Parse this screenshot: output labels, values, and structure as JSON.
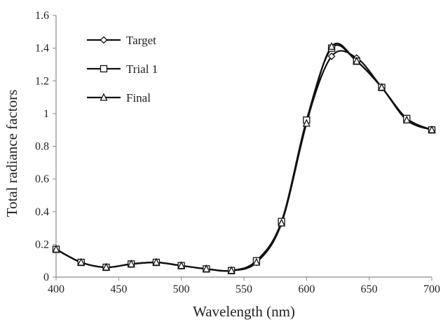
{
  "chart_data": {
    "type": "line",
    "title": "",
    "xlabel": "Wavelength (nm)",
    "ylabel": "Total  radiance factors",
    "xlim": [
      400,
      700
    ],
    "ylim": [
      0,
      1.6
    ],
    "x_ticks": [
      "400",
      "450",
      "500",
      "550",
      "600",
      "650",
      "700"
    ],
    "y_ticks": [
      "0",
      "0.2",
      "0.4",
      "0.6",
      "0.8",
      "1",
      "1.2",
      "1.4",
      "1.6"
    ],
    "grid": false,
    "legend_position": "top-left",
    "x": [
      400,
      420,
      440,
      460,
      480,
      500,
      520,
      540,
      560,
      580,
      600,
      620,
      640,
      660,
      680,
      700
    ],
    "series": [
      {
        "name": "Target",
        "marker": "diamond",
        "values": [
          0.17,
          0.09,
          0.06,
          0.08,
          0.09,
          0.07,
          0.05,
          0.04,
          0.09,
          0.33,
          0.95,
          1.35,
          1.34,
          1.16,
          0.97,
          0.9
        ]
      },
      {
        "name": "Trial 1",
        "marker": "square",
        "values": [
          0.17,
          0.09,
          0.06,
          0.08,
          0.09,
          0.07,
          0.05,
          0.04,
          0.1,
          0.34,
          0.96,
          1.4,
          1.32,
          1.16,
          0.97,
          0.9
        ]
      },
      {
        "name": "Final",
        "marker": "triangle",
        "values": [
          0.17,
          0.09,
          0.06,
          0.08,
          0.09,
          0.07,
          0.05,
          0.04,
          0.09,
          0.33,
          0.94,
          1.41,
          1.32,
          1.16,
          0.96,
          0.9
        ]
      }
    ]
  }
}
